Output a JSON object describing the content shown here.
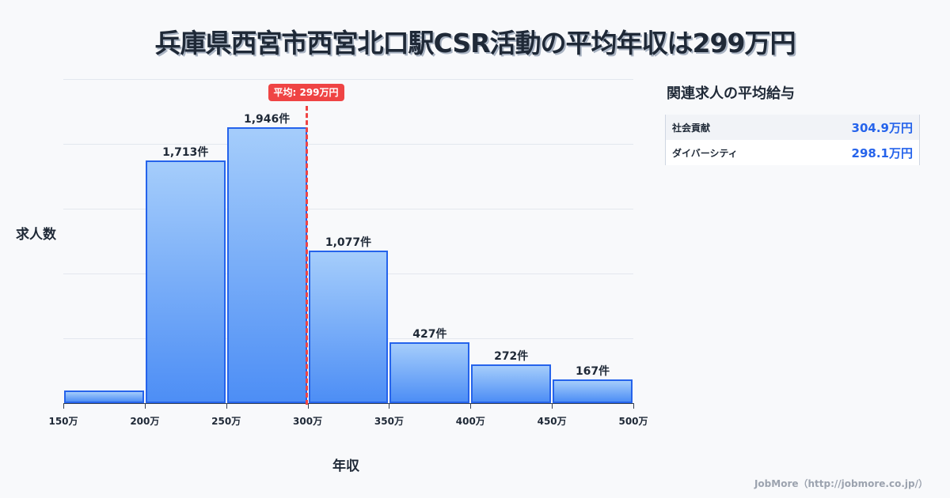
{
  "title": "兵庫県西宮市西宮北口駅CSR活動の平均年収は299万円",
  "chart_data": {
    "type": "bar",
    "title": "兵庫県西宮市西宮北口駅CSR活動の平均年収は299万円",
    "xlabel": "年収",
    "ylabel": "求人数",
    "categories": [
      "150-200万",
      "200-250万",
      "250-300万",
      "300-350万",
      "350-400万",
      "400-450万",
      "450-500万"
    ],
    "bin_edges": [
      150,
      200,
      250,
      300,
      350,
      400,
      450,
      500
    ],
    "values": [
      89,
      1713,
      1946,
      1077,
      427,
      272,
      167
    ],
    "value_labels": [
      "",
      "1,713件",
      "1,946件",
      "1,077件",
      "427件",
      "272件",
      "167件"
    ],
    "x_tick_labels": [
      "150万",
      "200万",
      "250万",
      "300万",
      "350万",
      "400万",
      "450万",
      "500万"
    ],
    "xlim": [
      150,
      500
    ],
    "ylim": [
      0,
      2286
    ],
    "grid": true,
    "average": {
      "value": 299,
      "label": "平均: 299万円",
      "color": "#ef4444"
    },
    "bar_color": "#2563eb"
  },
  "side_panel": {
    "title": "関連求人の平均給与",
    "rows": [
      {
        "name": "社会貢献",
        "value": "304.9万円"
      },
      {
        "name": "ダイバーシティ",
        "value": "298.1万円"
      }
    ]
  },
  "footer": "JobMore（http://jobmore.co.jp/）"
}
